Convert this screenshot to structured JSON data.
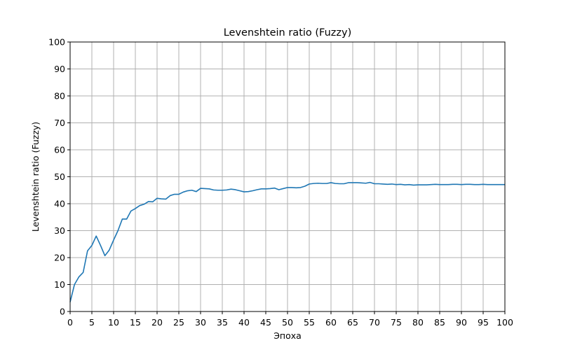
{
  "chart_data": {
    "type": "line",
    "title": "Levenshtein ratio (Fuzzy)",
    "xlabel": "Эпоха",
    "ylabel": "Levenshtein ratio (Fuzzy)",
    "xlim": [
      0,
      100
    ],
    "ylim": [
      0,
      100
    ],
    "xticks": [
      "0",
      "5",
      "10",
      "15",
      "20",
      "25",
      "30",
      "35",
      "40",
      "45",
      "50",
      "55",
      "60",
      "65",
      "70",
      "75",
      "80",
      "85",
      "90",
      "95",
      "100"
    ],
    "yticks": [
      "0",
      "10",
      "20",
      "30",
      "40",
      "50",
      "60",
      "70",
      "80",
      "90",
      "100"
    ],
    "grid": true,
    "series": [
      {
        "color": "#1f77b4",
        "x": [
          0,
          1,
          2,
          3,
          4,
          5,
          6,
          7,
          8,
          9,
          10,
          11,
          12,
          13,
          14,
          15,
          16,
          17,
          18,
          19,
          20,
          21,
          22,
          23,
          24,
          25,
          26,
          27,
          28,
          29,
          30,
          31,
          32,
          33,
          34,
          35,
          36,
          37,
          38,
          39,
          40,
          41,
          42,
          43,
          44,
          45,
          46,
          47,
          48,
          49,
          50,
          51,
          52,
          53,
          54,
          55,
          56,
          57,
          58,
          59,
          60,
          61,
          62,
          63,
          64,
          65,
          66,
          67,
          68,
          69,
          70,
          71,
          72,
          73,
          74,
          75,
          76,
          77,
          78,
          79,
          80,
          81,
          82,
          83,
          84,
          85,
          86,
          87,
          88,
          89,
          90,
          91,
          92,
          93,
          94,
          95,
          96,
          97,
          98,
          99,
          100
        ],
        "y": [
          3.5,
          10.0,
          12.8,
          14.5,
          22.5,
          24.5,
          28.0,
          24.5,
          20.7,
          22.8,
          26.5,
          30.0,
          34.3,
          34.3,
          37.3,
          38.2,
          39.3,
          39.8,
          40.8,
          40.7,
          42.0,
          41.8,
          41.7,
          43.0,
          43.5,
          43.5,
          44.3,
          44.8,
          45.0,
          44.5,
          45.7,
          45.6,
          45.5,
          45.1,
          45.0,
          45.0,
          45.1,
          45.4,
          45.2,
          44.8,
          44.4,
          44.5,
          44.8,
          45.2,
          45.5,
          45.5,
          45.6,
          45.8,
          45.2,
          45.6,
          46.0,
          46.0,
          45.9,
          46.0,
          46.5,
          47.3,
          47.5,
          47.6,
          47.5,
          47.5,
          47.8,
          47.5,
          47.4,
          47.4,
          47.8,
          47.8,
          47.8,
          47.7,
          47.6,
          47.9,
          47.4,
          47.4,
          47.3,
          47.2,
          47.3,
          47.1,
          47.2,
          47.0,
          47.1,
          46.9,
          47.0,
          47.0,
          47.0,
          47.1,
          47.2,
          47.1,
          47.1,
          47.1,
          47.2,
          47.2,
          47.1,
          47.2,
          47.2,
          47.1,
          47.1,
          47.2,
          47.1,
          47.1,
          47.1,
          47.1,
          47.1
        ]
      }
    ]
  }
}
